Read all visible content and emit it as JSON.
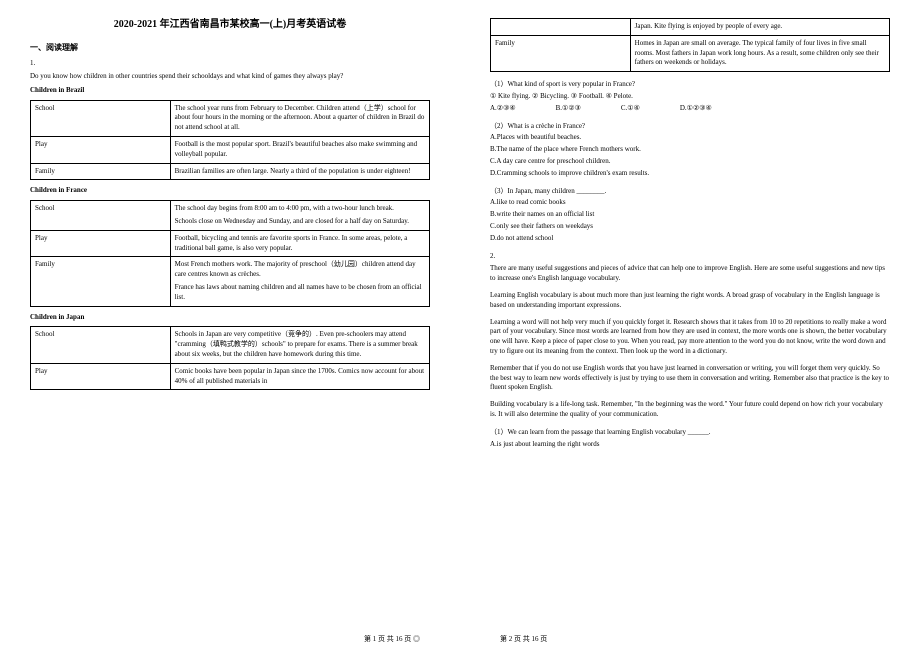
{
  "title": "2020-2021 年江西省南昌市某校高一(上)月考英语试卷",
  "section1": "一、阅读理解",
  "q1num": "1.",
  "q1prompt": "Do you know how children in other countries spend their schooldays and what kind of games they always play?",
  "brazil": {
    "heading": "Children in Brazil",
    "rows": [
      {
        "label": "School",
        "content": "The school year runs from February to December. Children attend（上学）school for about four hours in the morning or the afternoon. About a quarter of children in Brazil do not attend school at all."
      },
      {
        "label": "Play",
        "content": "Football is the most popular sport. Brazil's beautiful beaches also make swimming and volleyball popular."
      },
      {
        "label": "Family",
        "content": "Brazilian families are often large. Nearly a third of the population is under eighteen!"
      }
    ]
  },
  "france": {
    "heading": "Children in France",
    "rows": [
      {
        "label": "School",
        "content": "The school day begins from 8:00 am to 4:00 pm, with a two-hour lunch break.",
        "content2": "Schools close on Wednesday and Sunday, and are closed for a half day on Saturday."
      },
      {
        "label": "Play",
        "content": "Football, bicycling and tennis are favorite sports in France. In some areas, pelote, a traditional ball game, is also very popular."
      },
      {
        "label": "Family",
        "content": "Most French mothers work. The majority of preschool（幼儿园）children attend day care centres known as crèches.",
        "content2": "France has laws about naming children and all names have to be chosen from an official list."
      }
    ]
  },
  "japan": {
    "heading": "Children in Japan",
    "rows": [
      {
        "label": "School",
        "content": "Schools in Japan are very competitive（竞争的）. Even pre-schoolers may attend \"cramming（填鸭式教学的）schools\" to prepare for exams. There is a summer break about six weeks, but the children have homework during this time."
      },
      {
        "label": "Play",
        "content": "Comic books have been popular in Japan since the 1700s. Comics now account for about 40% of all published materials in"
      }
    ],
    "rows_cont": [
      {
        "label": "",
        "content": "Japan. Kite flying is enjoyed by people of every age."
      },
      {
        "label": "Family",
        "content": "Homes in Japan are small on average. The typical family of four lives in five small rooms. Most fathers in Japan work long hours. As a result, some children only see their fathers on weekends or holidays."
      }
    ]
  },
  "subq1": {
    "stem": "（1）What kind of sport is very popular in France?",
    "opts": "① Kite flying. ② Bicycling. ③ Football. ④ Pelote.",
    "choices": [
      "A.②③④",
      "B.①②③",
      "C.①④",
      "D.①②③④"
    ]
  },
  "subq2": {
    "stem": "（2）What is a crèche in France?",
    "a": "A.Places with beautiful beaches.",
    "b": "B.The name of the place where French mothers work.",
    "c": "C.A day care centre for preschool children.",
    "d": "D.Cramming schools to improve children's exam results."
  },
  "subq3": {
    "stem": "（3）In Japan, many children ________.",
    "a": "A.like to read comic books",
    "b": "B.write their names on an official list",
    "c": "C.only see their fathers on weekdays",
    "d": "D.do not attend school"
  },
  "q2num": "2.",
  "passage2": {
    "p1": "There are many useful suggestions and pieces of advice that can help one to improve English. Here are some useful suggestions and new tips to increase one's English language vocabulary.",
    "p2": "Learning English vocabulary is about much more than just learning the right words. A broad grasp of vocabulary in the English language is based on understanding important expressions.",
    "p3": "Learning a word will not help very much if you quickly forget it. Research shows that it takes from 10 to 20 repetitions to really make a word part of your vocabulary. Since most words are learned from how they are used in context, the more words one is shown, the better vocabulary one will have. Keep a piece of paper close to you. When you read, pay more attention to the word you do not know, write the word down and try to figure out its meaning from the context. Then look up the word in a dictionary.",
    "p4": "Remember that if you do not use English words that you have just learned in conversation or writing, you will forget them very quickly. So the best way to learn new words effectively is just by trying to use them in conversation and writing. Remember also that practice is the key to fluent spoken English.",
    "p5": "Building vocabulary is a life-long task. Remember, \"In the beginning was the word.\" Your future could depend on how rich your vocabulary is. It will also determine the quality of your communication."
  },
  "subq4": {
    "stem": "（1）We can learn from the passage that learning English vocabulary ______.",
    "a": "A.is just about learning the right words"
  },
  "footer_left": "第 1 页 共 16 页   ◎",
  "footer_right": "第 2 页 共 16 页"
}
